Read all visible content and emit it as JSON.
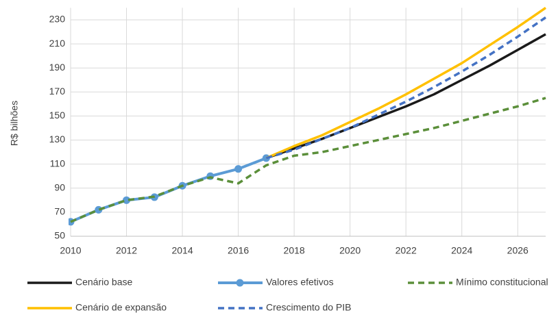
{
  "chart_data": {
    "type": "line",
    "y_label": "R$ bilhões",
    "x": [
      2010,
      2011,
      2012,
      2013,
      2014,
      2015,
      2016,
      2017,
      2018,
      2019,
      2020,
      2021,
      2022,
      2023,
      2024,
      2025,
      2026,
      2027
    ],
    "xlim": [
      2010,
      2027
    ],
    "xticks": [
      2010,
      2012,
      2014,
      2016,
      2018,
      2020,
      2022,
      2024,
      2026
    ],
    "ylim": [
      50,
      240
    ],
    "yticks": [
      50,
      70,
      90,
      110,
      130,
      150,
      170,
      190,
      210,
      230
    ],
    "grid": true,
    "legend": "bottom",
    "series": [
      {
        "name": "Cenário base",
        "color": "#1a1a1a",
        "dash": "solid",
        "marker": false,
        "values": [
          null,
          null,
          null,
          null,
          null,
          null,
          null,
          115,
          123,
          131,
          140,
          149,
          158,
          168,
          180,
          192,
          205,
          218
        ]
      },
      {
        "name": "Valores efetivos",
        "color": "#5b9bd5",
        "dash": "solid",
        "marker": true,
        "values": [
          62,
          72,
          80,
          82.5,
          92,
          100,
          106,
          115,
          null,
          null,
          null,
          null,
          null,
          null,
          null,
          null,
          null,
          null
        ]
      },
      {
        "name": "Mínimo constitucional",
        "color": "#5b8f3a",
        "dash": "dashed",
        "marker": false,
        "values": [
          62,
          72,
          80,
          83,
          92,
          99,
          94,
          109,
          117,
          120,
          125,
          130,
          135,
          140,
          146,
          152,
          158,
          165
        ]
      },
      {
        "name": "Cenário de expansão",
        "color": "#ffc000",
        "dash": "solid",
        "marker": false,
        "values": [
          null,
          null,
          null,
          null,
          null,
          null,
          null,
          115,
          125,
          134,
          145,
          156,
          168,
          181,
          194,
          209,
          224,
          240
        ]
      },
      {
        "name": "Crescimento do PIB",
        "color": "#4472c4",
        "dash": "dashed",
        "marker": false,
        "values": [
          null,
          null,
          null,
          null,
          null,
          null,
          null,
          115,
          122,
          131,
          140,
          151,
          162,
          174,
          187,
          201,
          216,
          232
        ]
      }
    ]
  }
}
